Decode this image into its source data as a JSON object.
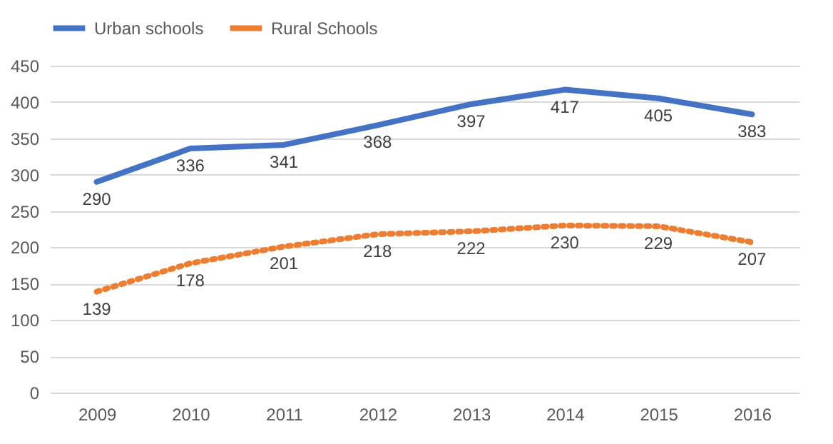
{
  "chart_data": {
    "type": "line",
    "categories": [
      "2009",
      "2010",
      "2011",
      "2012",
      "2013",
      "2014",
      "2015",
      "2016"
    ],
    "series": [
      {
        "name": "Urban schools",
        "color": "#4472c4",
        "line_style": "solid",
        "values": [
          290,
          336,
          341,
          368,
          397,
          417,
          405,
          383
        ]
      },
      {
        "name": "Rural Schools",
        "color": "#ed7d31",
        "line_style": "dotted",
        "values": [
          139,
          178,
          201,
          218,
          222,
          230,
          229,
          207
        ]
      }
    ],
    "ylim": [
      0,
      450
    ],
    "yticks": [
      0,
      50,
      100,
      150,
      200,
      250,
      300,
      350,
      400,
      450
    ],
    "grid": "y",
    "legend": "top",
    "data_labels": true
  }
}
